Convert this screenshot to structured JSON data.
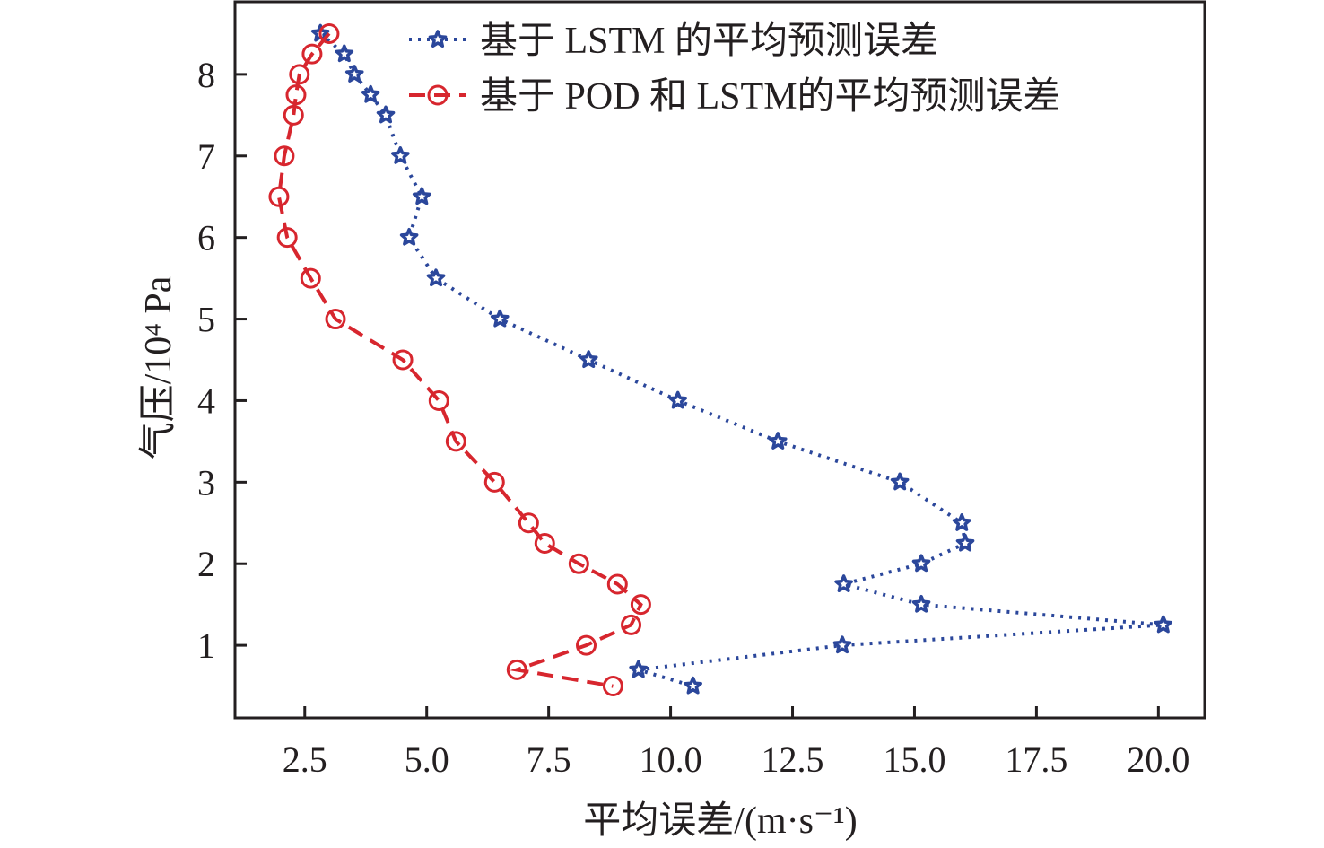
{
  "chart_data": {
    "type": "line",
    "title": "",
    "xlabel": "平均误差/(m·s⁻¹)",
    "ylabel": "气压/10⁴ Pa",
    "xlim": [
      1.07,
      20.95
    ],
    "ylim": [
      0.11,
      8.89
    ],
    "xticks": [
      2.5,
      5.0,
      7.5,
      10.0,
      12.5,
      15.0,
      17.5,
      20.0
    ],
    "xtick_labels": [
      "2.5",
      "5.0",
      "7.5",
      "10.0",
      "12.5",
      "15.0",
      "17.5",
      "20.0"
    ],
    "yticks": [
      1,
      2,
      3,
      4,
      5,
      6,
      7,
      8
    ],
    "ytick_labels": [
      "1",
      "2",
      "3",
      "4",
      "5",
      "6",
      "7",
      "8"
    ],
    "grid": false,
    "legend_position": "top-right",
    "series": [
      {
        "name": "基于 LSTM 的平均预测误差",
        "color": "#2b479b",
        "line_style": "dotted",
        "marker": "star",
        "points": [
          [
            2.82,
            8.5
          ],
          [
            3.31,
            8.25
          ],
          [
            3.52,
            8.0
          ],
          [
            3.85,
            7.75
          ],
          [
            4.16,
            7.5
          ],
          [
            4.46,
            7.0
          ],
          [
            4.9,
            6.5
          ],
          [
            4.64,
            6.0
          ],
          [
            5.19,
            5.5
          ],
          [
            6.5,
            5.0
          ],
          [
            8.32,
            4.5
          ],
          [
            10.15,
            4.0
          ],
          [
            12.2,
            3.5
          ],
          [
            14.7,
            3.0
          ],
          [
            15.97,
            2.5
          ],
          [
            16.04,
            2.25
          ],
          [
            15.14,
            2.0
          ],
          [
            13.55,
            1.75
          ],
          [
            15.14,
            1.5
          ],
          [
            20.1,
            1.25
          ],
          [
            13.52,
            1.0
          ],
          [
            9.34,
            0.7
          ],
          [
            10.46,
            0.5
          ]
        ]
      },
      {
        "name": "基于 POD 和 LSTM的平均预测误差",
        "color": "#d7262e",
        "line_style": "dashed",
        "marker": "circle",
        "points": [
          [
            3.0,
            8.5
          ],
          [
            2.65,
            8.25
          ],
          [
            2.39,
            8.0
          ],
          [
            2.32,
            7.75
          ],
          [
            2.27,
            7.5
          ],
          [
            2.08,
            7.0
          ],
          [
            1.97,
            6.5
          ],
          [
            2.14,
            6.0
          ],
          [
            2.62,
            5.5
          ],
          [
            3.13,
            5.0
          ],
          [
            4.51,
            4.5
          ],
          [
            5.25,
            4.0
          ],
          [
            5.6,
            3.5
          ],
          [
            6.39,
            3.0
          ],
          [
            7.09,
            2.5
          ],
          [
            7.42,
            2.25
          ],
          [
            8.12,
            2.0
          ],
          [
            8.91,
            1.75
          ],
          [
            9.39,
            1.5
          ],
          [
            9.19,
            1.25
          ],
          [
            8.27,
            1.0
          ],
          [
            6.85,
            0.7
          ],
          [
            8.82,
            0.5
          ]
        ]
      }
    ]
  }
}
